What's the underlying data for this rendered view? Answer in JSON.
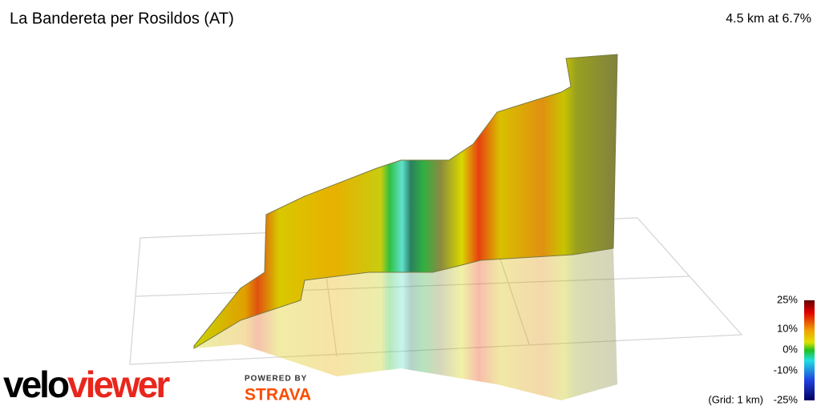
{
  "header": {
    "title": "La Bandereta per Rosildos (AT)",
    "summary": "4.5 km at 6.7%"
  },
  "legend": {
    "labels": [
      "25%",
      "10%",
      "0%",
      "-10%",
      "-25%"
    ],
    "note": "(Grid: 1 km)"
  },
  "branding": {
    "logo_prefix": "velo",
    "logo_suffix": "viewer",
    "powered_by": "POWERED BY",
    "partner": "STRAVA"
  }
}
